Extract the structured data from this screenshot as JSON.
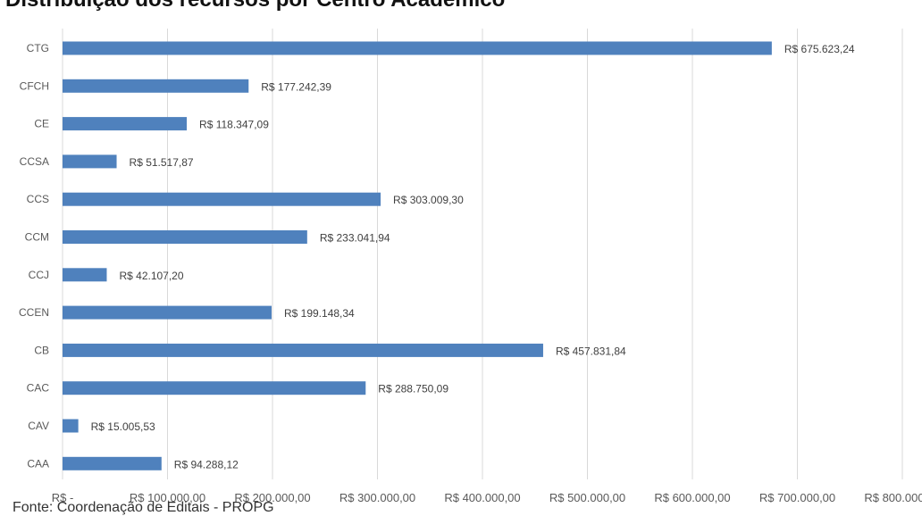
{
  "title": "Distribuição dos recursos por Centro Acadêmico",
  "source_text": "Fonte: Coordenação de Editais - PROPG",
  "chart_data": {
    "type": "bar",
    "orientation": "horizontal",
    "title": "Distribuição dos recursos por Centro Acadêmico",
    "xlabel": "",
    "ylabel": "",
    "xlim": [
      0,
      800000
    ],
    "grid": "vertical",
    "legend": "none",
    "bar_color": "#4f81bd",
    "gridline_color": "#d9d9d9",
    "categories": [
      "CTG",
      "CFCH",
      "CE",
      "CCSA",
      "CCS",
      "CCM",
      "CCJ",
      "CCEN",
      "CB",
      "CAC",
      "CAV",
      "CAA"
    ],
    "values": [
      675623.24,
      177242.39,
      118347.09,
      51517.87,
      303009.3,
      233041.94,
      42107.2,
      199148.34,
      457831.84,
      288750.09,
      15005.53,
      94288.12
    ],
    "data_labels": [
      "R$ 675.623,24",
      "R$ 177.242,39",
      "R$ 118.347,09",
      "R$ 51.517,87",
      "R$ 303.009,30",
      "R$ 233.041,94",
      "R$ 42.107,20",
      "R$ 199.148,34",
      "R$ 457.831,84",
      "R$ 288.750,09",
      "R$ 15.005,53",
      "R$ 94.288,12"
    ],
    "x_ticks": [
      0,
      100000,
      200000,
      300000,
      400000,
      500000,
      600000,
      700000,
      800000
    ],
    "x_tick_labels": [
      "R$ -",
      "R$ 100.000,00",
      "R$ 200.000,00",
      "R$ 300.000,00",
      "R$ 400.000,00",
      "R$ 500.000,00",
      "R$ 600.000,00",
      "R$ 700.000,00",
      "R$ 800.000,00"
    ]
  }
}
